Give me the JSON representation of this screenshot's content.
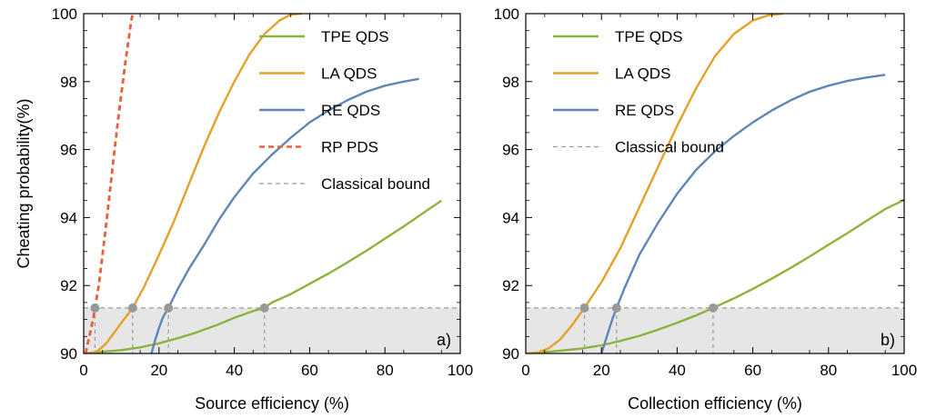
{
  "chart_data": [
    {
      "type": "line",
      "panel_label": "a)",
      "xlabel": "Source efficiency (%)",
      "ylabel": "Cheating probability(%)",
      "xlim": [
        0,
        100
      ],
      "ylim": [
        90,
        100
      ],
      "xticks": [
        0,
        20,
        40,
        60,
        80,
        100
      ],
      "yticks": [
        90,
        92,
        94,
        96,
        98,
        100
      ],
      "x_tick_labels": [
        "0",
        "20",
        "40",
        "60",
        "80",
        "100"
      ],
      "y_tick_labels": [
        "90",
        "92",
        "94",
        "96",
        "98",
        "100"
      ],
      "legend_position": "top-right",
      "classical_bound": 91.34,
      "colors": {
        "TPE QDS": "#8db33c",
        "LA QDS": "#e6a02a",
        "RE QDS": "#5f86b8",
        "RP PDS": "#e8603a",
        "Classical bound": "#999999"
      },
      "series": [
        {
          "name": "TPE QDS",
          "style": "solid",
          "x": [
            0,
            5,
            10,
            15,
            20,
            25,
            30,
            35,
            40,
            45,
            48,
            50,
            55,
            60,
            65,
            70,
            75,
            80,
            85,
            90,
            95
          ],
          "y": [
            90,
            90.05,
            90.1,
            90.18,
            90.3,
            90.45,
            90.62,
            90.82,
            91.05,
            91.25,
            91.34,
            91.5,
            91.75,
            92.05,
            92.35,
            92.68,
            93.02,
            93.38,
            93.74,
            94.12,
            94.5
          ]
        },
        {
          "name": "LA QDS",
          "style": "solid",
          "x": [
            0,
            2,
            4,
            6,
            8,
            10,
            13,
            16,
            20,
            24,
            28,
            32,
            36,
            40,
            44,
            48,
            52,
            55,
            58
          ],
          "y": [
            90,
            90,
            90.1,
            90.3,
            90.6,
            90.9,
            91.34,
            91.95,
            92.9,
            93.9,
            95.0,
            96.1,
            97.1,
            98.0,
            98.8,
            99.4,
            99.8,
            99.97,
            100
          ]
        },
        {
          "name": "RE QDS",
          "style": "solid",
          "x": [
            18,
            19,
            20,
            21,
            22.5,
            25,
            28,
            32,
            36,
            40,
            45,
            50,
            55,
            60,
            65,
            70,
            75,
            80,
            85,
            89
          ],
          "y": [
            90,
            90.4,
            90.75,
            91.05,
            91.34,
            91.9,
            92.5,
            93.2,
            93.95,
            94.6,
            95.3,
            95.85,
            96.35,
            96.8,
            97.15,
            97.45,
            97.7,
            97.88,
            98.0,
            98.08
          ]
        },
        {
          "name": "RP PDS",
          "style": "dashed",
          "x": [
            0.5,
            1.5,
            2.5,
            3,
            4,
            5,
            6.5,
            8,
            9.5,
            11,
            12.5,
            13
          ],
          "y": [
            90,
            90.5,
            91.0,
            91.34,
            92.0,
            92.9,
            94.3,
            95.8,
            97.2,
            98.5,
            99.7,
            100
          ]
        }
      ],
      "bound_intersections": [
        {
          "series": "RP PDS",
          "x": 3
        },
        {
          "series": "LA QDS",
          "x": 13
        },
        {
          "series": "RE QDS",
          "x": 22.5
        },
        {
          "series": "TPE QDS",
          "x": 48
        }
      ]
    },
    {
      "type": "line",
      "panel_label": "b)",
      "xlabel": "Collection efficiency (%)",
      "ylabel": "",
      "xlim": [
        0,
        100
      ],
      "ylim": [
        90,
        100
      ],
      "xticks": [
        0,
        20,
        40,
        60,
        80,
        100
      ],
      "yticks": [
        90,
        92,
        94,
        96,
        98,
        100
      ],
      "x_tick_labels": [
        "0",
        "20",
        "40",
        "60",
        "80",
        "100"
      ],
      "y_tick_labels": [
        "90",
        "92",
        "94",
        "96",
        "98",
        "100"
      ],
      "legend_position": "top-left",
      "classical_bound": 91.34,
      "colors": {
        "TPE QDS": "#8db33c",
        "LA QDS": "#e6a02a",
        "RE QDS": "#5f86b8",
        "Classical bound": "#999999"
      },
      "series": [
        {
          "name": "TPE QDS",
          "style": "solid",
          "x": [
            0,
            5,
            10,
            15,
            20,
            25,
            30,
            35,
            40,
            45,
            49.5,
            55,
            60,
            65,
            70,
            75,
            80,
            85,
            90,
            95,
            100
          ],
          "y": [
            90,
            90.04,
            90.09,
            90.15,
            90.24,
            90.37,
            90.52,
            90.7,
            90.9,
            91.12,
            91.34,
            91.62,
            91.9,
            92.2,
            92.52,
            92.85,
            93.2,
            93.54,
            93.9,
            94.25,
            94.52
          ]
        },
        {
          "name": "LA QDS",
          "style": "solid",
          "x": [
            0,
            3,
            6,
            9,
            12,
            15.5,
            20,
            25,
            30,
            35,
            40,
            45,
            50,
            55,
            60,
            64,
            68
          ],
          "y": [
            90,
            90.02,
            90.15,
            90.4,
            90.8,
            91.34,
            92.1,
            93.1,
            94.3,
            95.5,
            96.7,
            97.8,
            98.75,
            99.4,
            99.8,
            99.95,
            100
          ]
        },
        {
          "name": "RE QDS",
          "style": "solid",
          "x": [
            20,
            21,
            22,
            23,
            24,
            26,
            30,
            35,
            40,
            45,
            50,
            55,
            60,
            65,
            70,
            75,
            80,
            85,
            90,
            95
          ],
          "y": [
            90,
            90.35,
            90.7,
            91.05,
            91.34,
            91.9,
            92.9,
            93.85,
            94.7,
            95.4,
            95.95,
            96.4,
            96.8,
            97.15,
            97.45,
            97.7,
            97.88,
            98.02,
            98.12,
            98.2
          ]
        }
      ],
      "bound_intersections": [
        {
          "series": "LA QDS",
          "x": 15.5
        },
        {
          "series": "RE QDS",
          "x": 24
        },
        {
          "series": "TPE QDS",
          "x": 49.5
        }
      ]
    }
  ]
}
